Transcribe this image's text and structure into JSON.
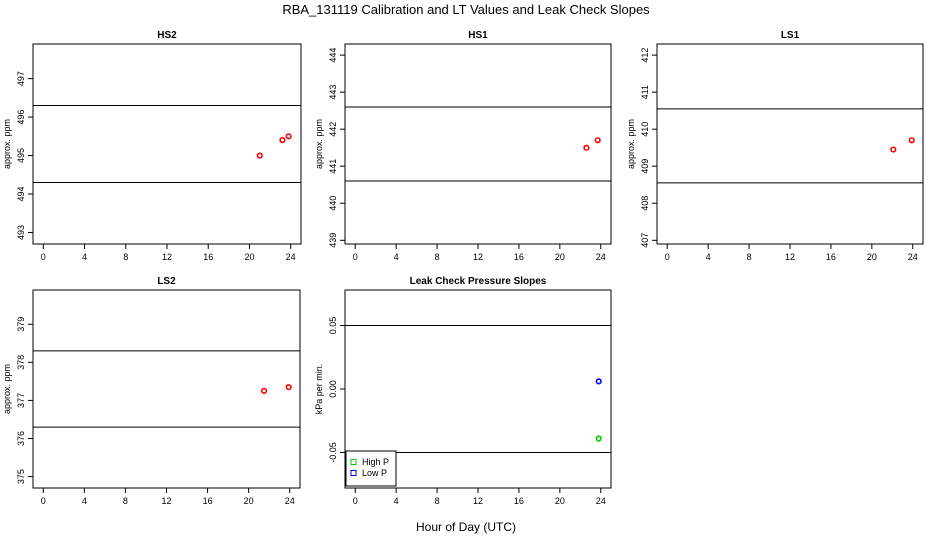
{
  "title": "RBA_131119  Calibration and LT Values and Leak Check Slopes",
  "xlabel": "Hour of Day (UTC)",
  "colors": {
    "cal": "#ff0000",
    "high_p": "#00cc00",
    "low_p": "#0000ff",
    "line": "#000000"
  },
  "chart_data": [
    {
      "type": "scatter",
      "title": "HS2",
      "ylabel": "approx. ppm",
      "xlim": [
        -1,
        25
      ],
      "ylim": [
        492.7,
        497.9
      ],
      "xticks": [
        0,
        4,
        8,
        12,
        16,
        20,
        24
      ],
      "yticks": [
        493,
        494,
        495,
        496,
        497
      ],
      "hlines": [
        496.3,
        494.3
      ],
      "series": [
        {
          "color": "#ff0000",
          "x": [
            21.0,
            23.2,
            23.8
          ],
          "y": [
            495.0,
            495.4,
            495.5
          ]
        }
      ]
    },
    {
      "type": "scatter",
      "title": "HS1",
      "ylabel": "approx. ppm",
      "xlim": [
        -1,
        25
      ],
      "ylim": [
        438.9,
        444.3
      ],
      "xticks": [
        0,
        4,
        8,
        12,
        16,
        20,
        24
      ],
      "yticks": [
        439,
        440,
        441,
        442,
        443,
        444
      ],
      "hlines": [
        442.6,
        440.6
      ],
      "series": [
        {
          "color": "#ff0000",
          "x": [
            22.6,
            23.7
          ],
          "y": [
            441.5,
            441.7
          ]
        }
      ]
    },
    {
      "type": "scatter",
      "title": "LS1",
      "ylabel": "approx. ppm",
      "xlim": [
        -1,
        25
      ],
      "ylim": [
        406.9,
        412.3
      ],
      "xticks": [
        0,
        4,
        8,
        12,
        16,
        20,
        24
      ],
      "yticks": [
        407,
        408,
        409,
        410,
        411,
        412
      ],
      "hlines": [
        410.55,
        408.55
      ],
      "series": [
        {
          "color": "#ff0000",
          "x": [
            22.1,
            23.9
          ],
          "y": [
            409.45,
            409.7
          ]
        }
      ]
    },
    {
      "type": "scatter",
      "title": "LS2",
      "ylabel": "approx. ppm",
      "xlim": [
        -1,
        25
      ],
      "ylim": [
        374.7,
        379.9
      ],
      "xticks": [
        0,
        4,
        8,
        12,
        16,
        20,
        24
      ],
      "yticks": [
        375,
        376,
        377,
        378,
        379
      ],
      "hlines": [
        378.3,
        376.3
      ],
      "series": [
        {
          "color": "#ff0000",
          "x": [
            21.5,
            23.9
          ],
          "y": [
            377.25,
            377.35
          ]
        }
      ]
    },
    {
      "type": "scatter",
      "title": "Leak Check Pressure Slopes",
      "ylabel": "kPa per min.",
      "xlim": [
        -1,
        25
      ],
      "ylim": [
        -0.078,
        0.078
      ],
      "xticks": [
        0,
        4,
        8,
        12,
        16,
        20,
        24
      ],
      "yticks": [
        -0.05,
        0.0,
        0.05
      ],
      "ytick_labels": [
        "-0.05",
        "0.00",
        "0.05"
      ],
      "hlines": [
        0.05,
        -0.05
      ],
      "series": [
        {
          "name": "High P",
          "color": "#00cc00",
          "x": [
            23.8
          ],
          "y": [
            -0.039
          ]
        },
        {
          "name": "Low P",
          "color": "#0000ff",
          "x": [
            23.8
          ],
          "y": [
            0.006
          ]
        }
      ],
      "legend": "bottom-left"
    }
  ]
}
